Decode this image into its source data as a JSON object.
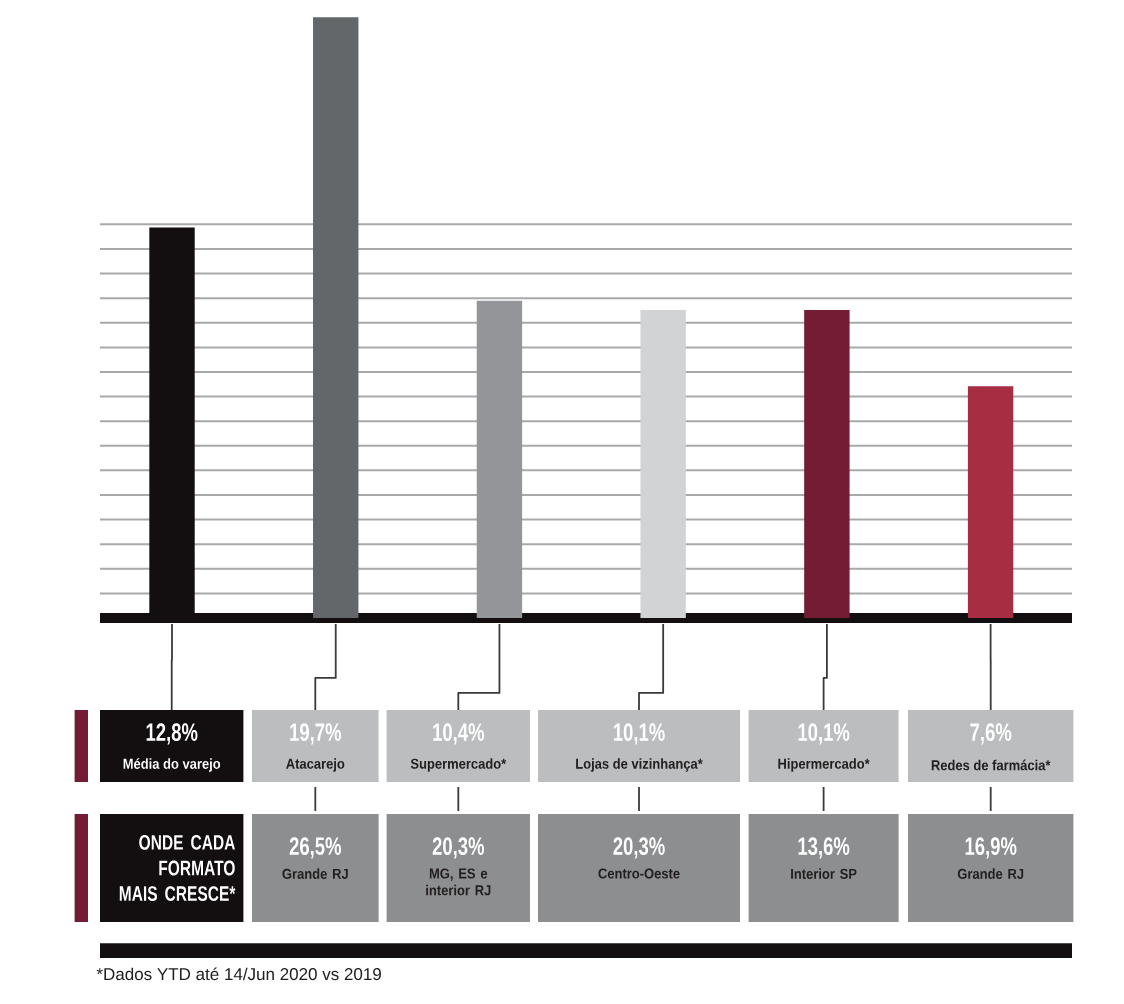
{
  "chart_data": {
    "type": "bar",
    "categories": [
      "Média do varejo",
      "Atacarejo",
      "Supermercado*",
      "Lojas de vizinhança*",
      "Hipermercado*",
      "Redes de farmácia*"
    ],
    "values": [
      12.8,
      19.7,
      10.4,
      10.1,
      10.1,
      7.6
    ],
    "colors": [
      "#130f10",
      "#636769",
      "#939598",
      "#d1d3d4",
      "#731c34",
      "#a62d42"
    ],
    "value_labels": [
      "12,8%",
      "19,7%",
      "10,4%",
      "10,1%",
      "10,1%",
      "7,6%"
    ],
    "grid": "y",
    "tick_labels": "x",
    "annotations": [
      "ONDE CADA FORMATO MAIS CRESCE*",
      "26,5%",
      "Grande RJ",
      "20,3%",
      "MG, ES e interior RJ",
      "20,3%",
      "Centro-Oeste",
      "13,6%",
      "Interior SP",
      "16,9%",
      "Grande RJ",
      "*Dados YTD até 14/Jun 2020 vs 2019"
    ]
  }
}
